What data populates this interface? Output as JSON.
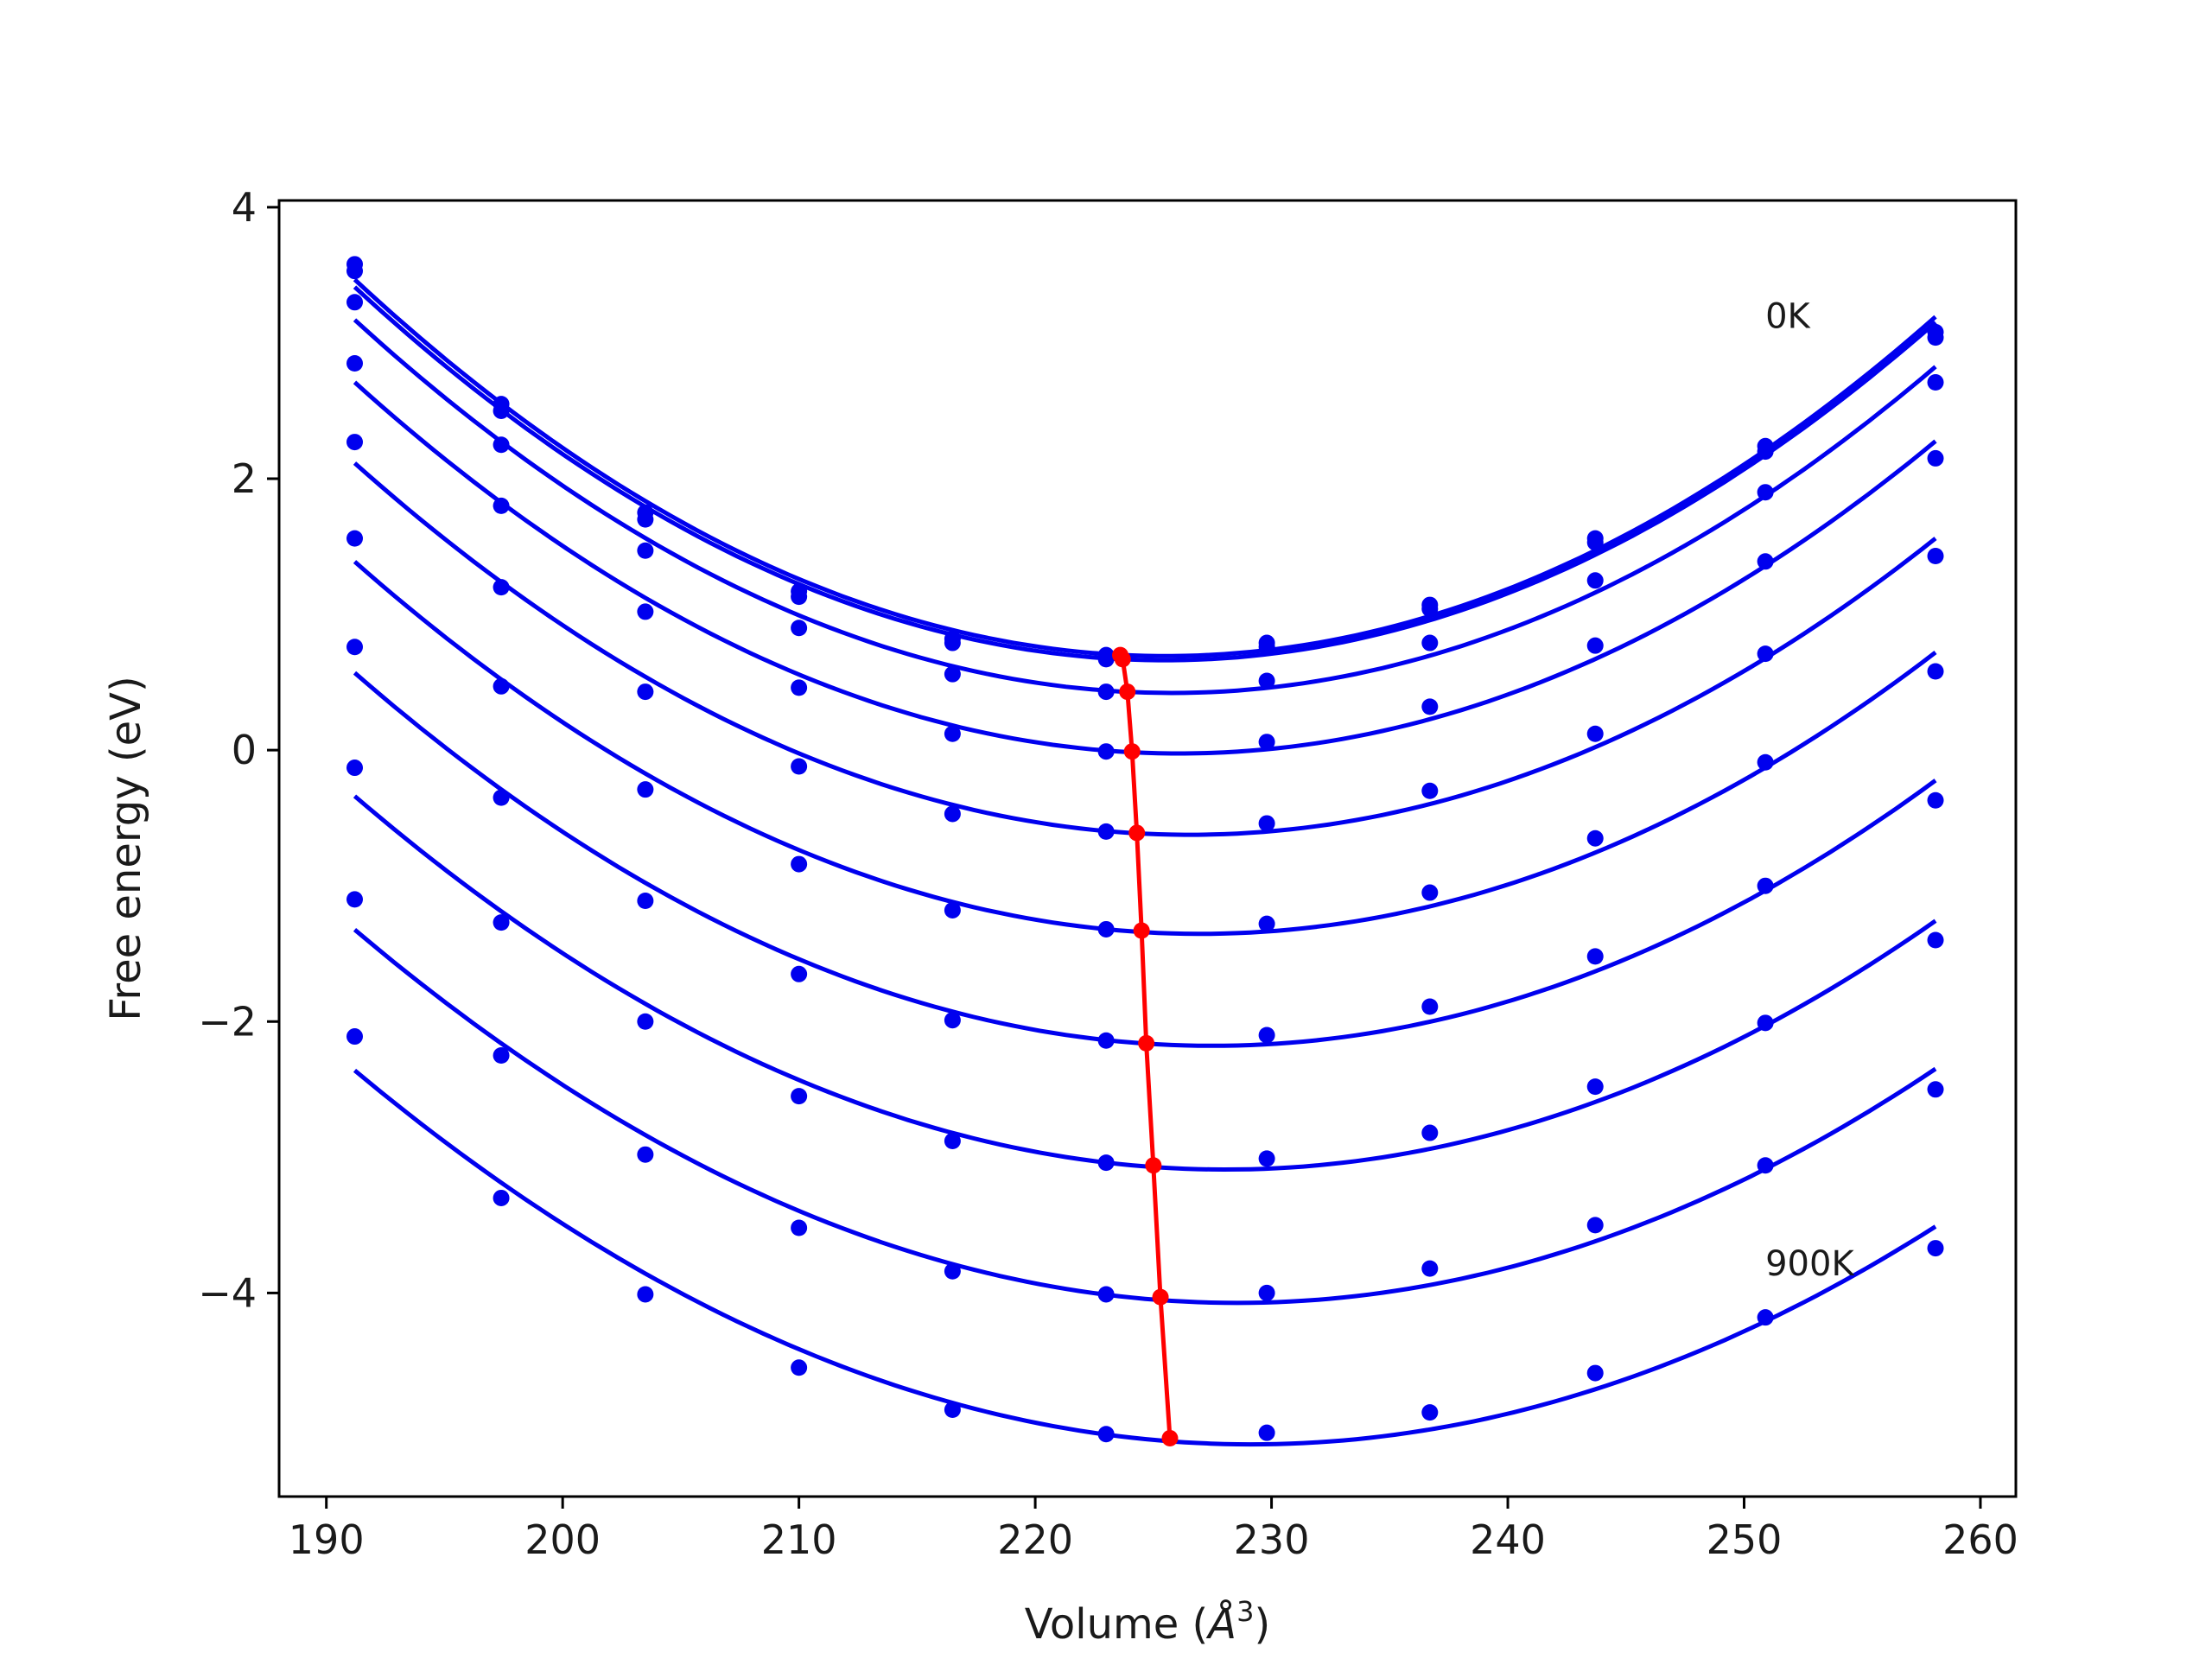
{
  "chart_data": {
    "type": "line",
    "title": "",
    "xlabel": "Volume (Å³)",
    "xlabel_base": "Volume (",
    "xlabel_sym": "Å",
    "xlabel_sup": "3",
    "xlabel_close": ")",
    "ylabel": "Free energy (eV)",
    "xlim": [
      188,
      261.5
    ],
    "ylim": [
      -5.5,
      4.05
    ],
    "xticks": [
      190,
      200,
      210,
      220,
      230,
      240,
      250,
      260
    ],
    "xtick_labels": [
      "190",
      "200",
      "210",
      "220",
      "230",
      "240",
      "250",
      "260"
    ],
    "yticks": [
      4,
      2,
      0,
      -2,
      -4
    ],
    "ytick_labels": [
      "4",
      "2",
      "0",
      "−2",
      "−4"
    ],
    "grid": false,
    "curve_color": "#0000ee",
    "min_color": "#ff0000",
    "volumes": [
      191.2,
      197.4,
      203.5,
      210.0,
      216.5,
      223.0,
      229.8,
      236.7,
      243.7,
      250.9,
      258.1
    ],
    "series": [
      {
        "values": [
          3.58,
          2.55,
          1.75,
          1.17,
          0.82,
          0.7,
          0.79,
          1.07,
          1.56,
          2.24,
          3.08
        ],
        "min_x": 223.6,
        "min_y": 0.7
      },
      {
        "values": [
          3.53,
          2.5,
          1.7,
          1.13,
          0.79,
          0.67,
          0.76,
          1.04,
          1.53,
          2.2,
          3.04
        ],
        "min_x": 223.7,
        "min_y": 0.67
      },
      {
        "values": [
          3.3,
          2.25,
          1.47,
          0.9,
          0.56,
          0.43,
          0.51,
          0.79,
          1.25,
          1.9,
          2.71
        ],
        "min_x": 223.9,
        "min_y": 0.43
      },
      {
        "values": [
          2.85,
          1.8,
          1.02,
          0.46,
          0.12,
          -0.01,
          0.06,
          0.32,
          0.77,
          1.39,
          2.15
        ],
        "min_x": 224.1,
        "min_y": -0.01
      },
      {
        "values": [
          2.27,
          1.2,
          0.43,
          -0.12,
          -0.47,
          -0.6,
          -0.54,
          -0.3,
          0.12,
          0.71,
          1.43
        ],
        "min_x": 224.3,
        "min_y": -0.61
      },
      {
        "values": [
          1.56,
          0.47,
          -0.29,
          -0.84,
          -1.18,
          -1.32,
          -1.28,
          -1.05,
          -0.65,
          -0.09,
          0.58
        ],
        "min_x": 224.5,
        "min_y": -1.33
      },
      {
        "values": [
          0.76,
          -0.35,
          -1.11,
          -1.65,
          -1.99,
          -2.14,
          -2.1,
          -1.89,
          -1.52,
          -1.0,
          -0.37
        ],
        "min_x": 224.7,
        "min_y": -2.16
      },
      {
        "values": [
          -0.13,
          -1.27,
          -2.0,
          -2.55,
          -2.88,
          -3.04,
          -3.01,
          -2.82,
          -2.48,
          -2.01,
          -1.4
        ],
        "min_x": 225.0,
        "min_y": -3.06
      },
      {
        "values": [
          -1.1,
          -2.25,
          -2.98,
          -3.52,
          -3.84,
          -4.01,
          -4.0,
          -3.82,
          -3.5,
          -3.06,
          -2.5
        ],
        "min_x": 225.3,
        "min_y": -4.03
      },
      {
        "values": [
          -2.11,
          -3.3,
          -4.01,
          -4.55,
          -4.86,
          -5.04,
          -5.03,
          -4.88,
          -4.59,
          -4.18,
          -3.67
        ],
        "min_x": 225.7,
        "min_y": -5.07
      }
    ],
    "annotations": [
      {
        "text": "0K",
        "x": 250.9,
        "y": 3.2
      },
      {
        "text": "900K",
        "x": 250.9,
        "y": -3.78
      }
    ]
  }
}
